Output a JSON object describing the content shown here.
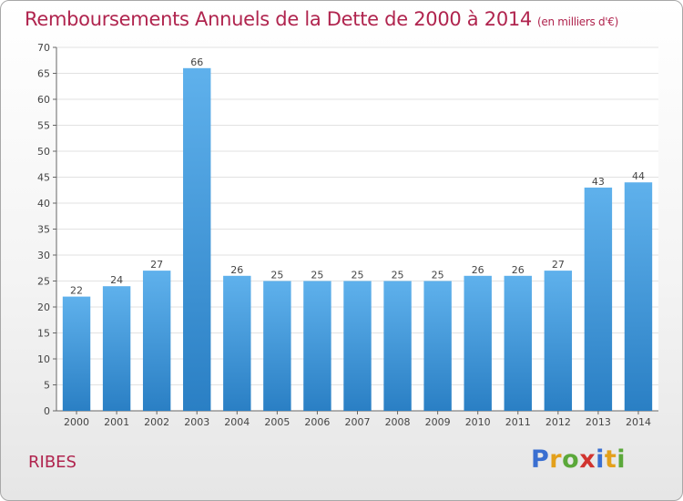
{
  "title": "Remboursements Annuels de la Dette de 2000 à 2014",
  "title_unit": "(en milliers d'€)",
  "town": "RIBES",
  "logo_text": "Proxiti",
  "colors": {
    "title": "#b0244e",
    "bar_light": "#5fb1ec",
    "bar_dark": "#2a7fc4",
    "grid": "#e2e2e2",
    "axis": "#666666"
  },
  "chart_data": {
    "type": "bar",
    "title": "Remboursements Annuels de la Dette de 2000 à 2014",
    "subtitle": "(en milliers d'€)",
    "xlabel": "",
    "ylabel": "",
    "categories": [
      "2000",
      "2001",
      "2002",
      "2003",
      "2004",
      "2005",
      "2006",
      "2007",
      "2008",
      "2009",
      "2010",
      "2011",
      "2012",
      "2013",
      "2014"
    ],
    "values": [
      22,
      24,
      27,
      66,
      26,
      25,
      25,
      25,
      25,
      25,
      26,
      26,
      27,
      43,
      44
    ],
    "data_labels": [
      "22",
      "24",
      "27",
      "66",
      "26",
      "25",
      "25",
      "25",
      "25",
      "25",
      "26",
      "26",
      "27",
      "43",
      "44"
    ],
    "ylim": [
      0,
      70
    ],
    "yticks": [
      0,
      5,
      10,
      15,
      20,
      25,
      30,
      35,
      40,
      45,
      50,
      55,
      60,
      65,
      70
    ],
    "grid": true,
    "legend": "none"
  }
}
